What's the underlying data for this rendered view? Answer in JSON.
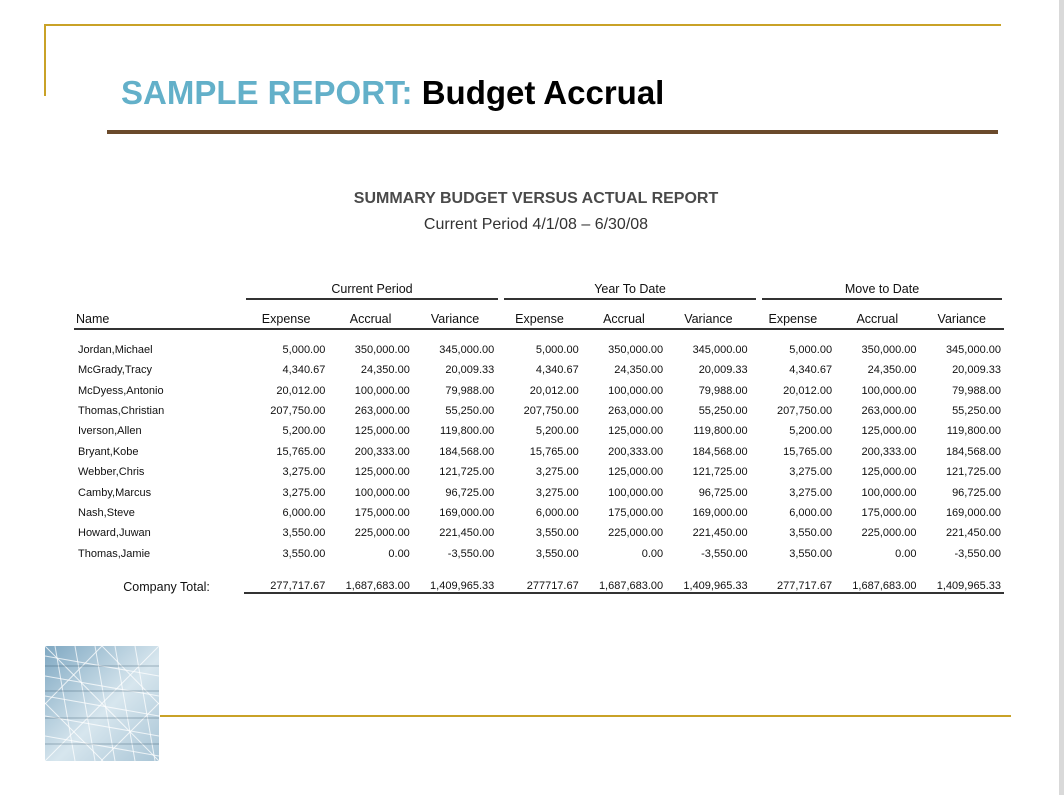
{
  "slide": {
    "title_prefix": "SAMPLE REPORT:",
    "title_main": " Budget Accrual"
  },
  "report": {
    "heading": "SUMMARY BUDGET VERSUS ACTUAL REPORT",
    "period": "Current Period 4/1/08 – 6/30/08",
    "groups": [
      "Current Period",
      "Year To Date",
      "Move to Date"
    ],
    "columns": [
      "Name",
      "Expense",
      "Accrual",
      "Variance",
      "Expense",
      "Accrual",
      "Variance",
      "Expense",
      "Accrual",
      "Variance"
    ],
    "rows": [
      {
        "name": "Jordan,Michael",
        "values": [
          "5,000.00",
          "350,000.00",
          "345,000.00",
          "5,000.00",
          "350,000.00",
          "345,000.00",
          "5,000.00",
          "350,000.00",
          "345,000.00"
        ]
      },
      {
        "name": "McGrady,Tracy",
        "values": [
          "4,340.67",
          "24,350.00",
          "20,009.33",
          "4,340.67",
          "24,350.00",
          "20,009.33",
          "4,340.67",
          "24,350.00",
          "20,009.33"
        ]
      },
      {
        "name": "McDyess,Antonio",
        "values": [
          "20,012.00",
          "100,000.00",
          "79,988.00",
          "20,012.00",
          "100,000.00",
          "79,988.00",
          "20,012.00",
          "100,000.00",
          "79,988.00"
        ]
      },
      {
        "name": "Thomas,Christian",
        "values": [
          "207,750.00",
          "263,000.00",
          "55,250.00",
          "207,750.00",
          "263,000.00",
          "55,250.00",
          "207,750.00",
          "263,000.00",
          "55,250.00"
        ]
      },
      {
        "name": "Iverson,Allen",
        "values": [
          "5,200.00",
          "125,000.00",
          "119,800.00",
          "5,200.00",
          "125,000.00",
          "119,800.00",
          "5,200.00",
          "125,000.00",
          "119,800.00"
        ]
      },
      {
        "name": "Bryant,Kobe",
        "values": [
          "15,765.00",
          "200,333.00",
          "184,568.00",
          "15,765.00",
          "200,333.00",
          "184,568.00",
          "15,765.00",
          "200,333.00",
          "184,568.00"
        ]
      },
      {
        "name": "Webber,Chris",
        "values": [
          "3,275.00",
          "125,000.00",
          "121,725.00",
          "3,275.00",
          "125,000.00",
          "121,725.00",
          "3,275.00",
          "125,000.00",
          "121,725.00"
        ]
      },
      {
        "name": "Camby,Marcus",
        "values": [
          "3,275.00",
          "100,000.00",
          "96,725.00",
          "3,275.00",
          "100,000.00",
          "96,725.00",
          "3,275.00",
          "100,000.00",
          "96,725.00"
        ]
      },
      {
        "name": "Nash,Steve",
        "values": [
          "6,000.00",
          "175,000.00",
          "169,000.00",
          "6,000.00",
          "175,000.00",
          "169,000.00",
          "6,000.00",
          "175,000.00",
          "169,000.00"
        ]
      },
      {
        "name": "Howard,Juwan",
        "values": [
          "3,550.00",
          "225,000.00",
          "221,450.00",
          "3,550.00",
          "225,000.00",
          "221,450.00",
          "3,550.00",
          "225,000.00",
          "221,450.00"
        ]
      },
      {
        "name": "Thomas,Jamie",
        "values": [
          "3,550.00",
          "0.00",
          "-3,550.00",
          "3,550.00",
          "0.00",
          "-3,550.00",
          "3,550.00",
          "0.00",
          "-3,550.00"
        ]
      }
    ],
    "total": {
      "label": "Company Total:",
      "values": [
        "277,717.67",
        "1,687,683.00",
        "1,409,965.33",
        "277717.67",
        "1,687,683.00",
        "1,409,965.33",
        "277,717.67",
        "1,687,683.00",
        "1,409,965.33"
      ]
    }
  },
  "colors": {
    "title_prefix": "#63b0c9",
    "accent_gold": "#c9a227",
    "title_rule": "#6b4a2b"
  },
  "decor": {
    "thumbnail_icon": "glass-dome-image"
  }
}
